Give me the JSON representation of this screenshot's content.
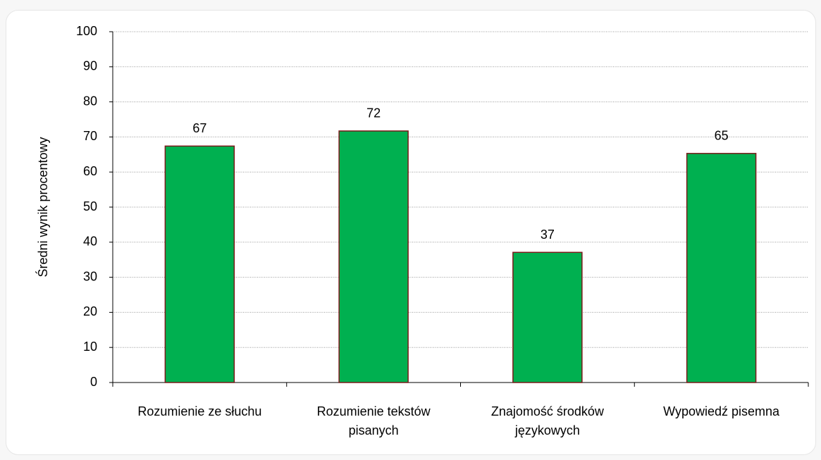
{
  "chart_data": {
    "type": "bar",
    "y_axis_label": "Średni wynik procentowy",
    "categories": [
      "Rozumienie ze słuchu",
      "Rozumienie tekstów pisanych",
      "Znajomość środków językowych",
      "Wypowiedź pisemna"
    ],
    "values": [
      67.4,
      71.7,
      37.1,
      65.3
    ],
    "value_labels": [
      "67",
      "72",
      "37",
      "65"
    ],
    "color": "#00b050",
    "edge_color": "#7a1a1a",
    "ylim": [
      0,
      100
    ],
    "yticks": [
      0,
      10,
      20,
      30,
      40,
      50,
      60,
      70,
      80,
      90,
      100
    ],
    "grid": true
  }
}
